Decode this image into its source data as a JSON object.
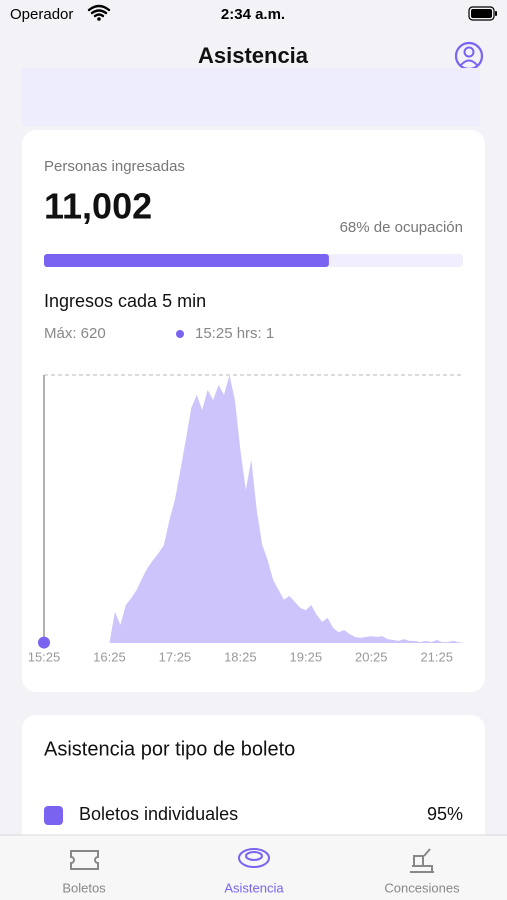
{
  "status_bar": {
    "carrier": "Operador",
    "time": "2:34 a.m."
  },
  "header": {
    "title": "Asistencia"
  },
  "summary": {
    "caption": "Personas ingresadas",
    "total": "11,002",
    "occupancy": 68,
    "occupancy_label": "68% de ocupación",
    "bar_color": "#7b63f1"
  },
  "chart_data": {
    "type": "area",
    "title": "Ingresos cada 5 min",
    "max": {
      "value": 620,
      "label": "Máx: 620"
    },
    "cursor_index": 0,
    "cursor_label": "15:25 hrs: 1",
    "color": "#cdc4fc",
    "accent": "#7b63f1",
    "ylim": [
      0,
      620
    ],
    "categories": [
      "15:25",
      null,
      null,
      null,
      null,
      null,
      null,
      null,
      null,
      null,
      null,
      null,
      "16:25",
      null,
      null,
      null,
      null,
      null,
      null,
      null,
      null,
      null,
      null,
      null,
      "17:25",
      null,
      null,
      null,
      null,
      null,
      null,
      null,
      null,
      null,
      null,
      null,
      "18:25",
      null,
      null,
      null,
      null,
      null,
      null,
      null,
      null,
      null,
      null,
      null,
      "19:25",
      null,
      null,
      null,
      null,
      null,
      null,
      null,
      null,
      null,
      null,
      null,
      "20:25",
      null,
      null,
      null,
      null,
      null,
      null,
      null,
      null,
      null,
      null,
      null,
      "21:25",
      null,
      null,
      null,
      null,
      null
    ],
    "values": [
      1,
      0,
      0,
      0,
      0,
      0,
      0,
      0,
      0,
      0,
      0,
      0,
      0,
      72,
      42,
      88,
      104,
      123,
      150,
      174,
      192,
      208,
      227,
      285,
      331,
      400,
      470,
      544,
      574,
      539,
      586,
      562,
      597,
      574,
      620,
      562,
      447,
      354,
      424,
      308,
      227,
      192,
      146,
      123,
      100,
      109,
      95,
      81,
      76,
      88,
      65,
      49,
      58,
      35,
      25,
      30,
      21,
      14,
      12,
      14,
      16,
      14,
      16,
      9,
      7,
      5,
      9,
      5,
      5,
      2,
      5,
      2,
      7,
      2,
      2,
      5,
      2,
      0
    ]
  },
  "ticket_types": {
    "title": "Asistencia por tipo de boleto",
    "items": [
      {
        "name": "Boletos individuales",
        "share": "95%",
        "color": "#7b63f1"
      }
    ]
  },
  "tab_bar": {
    "tabs": [
      "Boletos",
      "Asistencia",
      "Concesiones"
    ],
    "active": 1
  }
}
